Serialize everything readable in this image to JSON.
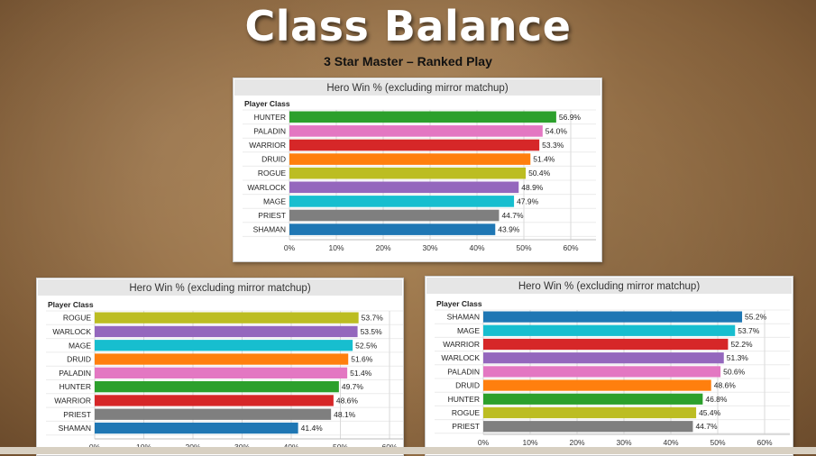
{
  "page": {
    "title": "Class Balance",
    "subtitle": "3 Star Master – Ranked Play"
  },
  "chart_data": [
    {
      "type": "bar",
      "orientation": "horizontal",
      "title": "Hero Win % (excluding mirror matchup)",
      "ylabel": "Player Class",
      "xlim": [
        0,
        60
      ],
      "xticks": [
        "0%",
        "10%",
        "20%",
        "30%",
        "40%",
        "50%",
        "60%"
      ],
      "grid": true,
      "categories": [
        "HUNTER",
        "PALADIN",
        "WARRIOR",
        "DRUID",
        "ROGUE",
        "WARLOCK",
        "MAGE",
        "PRIEST",
        "SHAMAN"
      ],
      "values": [
        56.9,
        54.0,
        53.3,
        51.4,
        50.4,
        48.9,
        47.9,
        44.7,
        43.9
      ],
      "labels": [
        "56.9%",
        "54.0%",
        "53.3%",
        "51.4%",
        "50.4%",
        "48.9%",
        "47.9%",
        "44.7%",
        "43.9%"
      ]
    },
    {
      "type": "bar",
      "orientation": "horizontal",
      "title": "Hero Win % (excluding mirror matchup)",
      "ylabel": "Player Class",
      "xlim": [
        0,
        60
      ],
      "xticks": [
        "0%",
        "10%",
        "20%",
        "30%",
        "40%",
        "50%",
        "60%"
      ],
      "grid": true,
      "categories": [
        "ROGUE",
        "WARLOCK",
        "MAGE",
        "DRUID",
        "PALADIN",
        "HUNTER",
        "WARRIOR",
        "PRIEST",
        "SHAMAN"
      ],
      "values": [
        53.7,
        53.5,
        52.5,
        51.6,
        51.4,
        49.7,
        48.6,
        48.1,
        41.4
      ],
      "labels": [
        "53.7%",
        "53.5%",
        "52.5%",
        "51.6%",
        "51.4%",
        "49.7%",
        "48.6%",
        "48.1%",
        "41.4%"
      ]
    },
    {
      "type": "bar",
      "orientation": "horizontal",
      "title": "Hero Win % (excluding mirror matchup)",
      "ylabel": "Player Class",
      "xlim": [
        0,
        60
      ],
      "xticks": [
        "0%",
        "10%",
        "20%",
        "30%",
        "40%",
        "50%",
        "60%"
      ],
      "grid": true,
      "categories": [
        "SHAMAN",
        "MAGE",
        "WARRIOR",
        "WARLOCK",
        "PALADIN",
        "DRUID",
        "HUNTER",
        "ROGUE",
        "PRIEST"
      ],
      "values": [
        55.2,
        53.7,
        52.2,
        51.3,
        50.6,
        48.6,
        46.8,
        45.4,
        44.7
      ],
      "labels": [
        "55.2%",
        "53.7%",
        "52.2%",
        "51.3%",
        "50.6%",
        "48.6%",
        "46.8%",
        "45.4%",
        "44.7%"
      ]
    }
  ],
  "class_colors": {
    "HUNTER": "#2ca02c",
    "PALADIN": "#e377c2",
    "WARRIOR": "#d62728",
    "DRUID": "#ff7f0e",
    "ROGUE": "#bcbd22",
    "WARLOCK": "#9467bd",
    "MAGE": "#17becf",
    "PRIEST": "#7f7f7f",
    "SHAMAN": "#1f77b4"
  }
}
